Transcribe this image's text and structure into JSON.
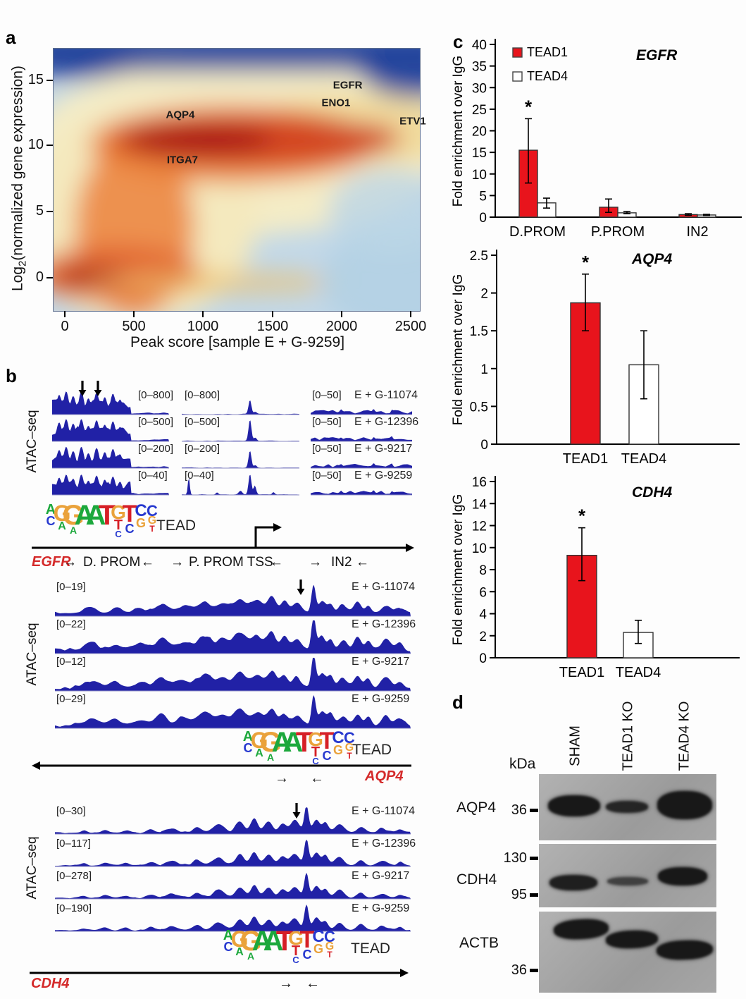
{
  "panel_labels": {
    "a": "a",
    "b": "b",
    "c": "c",
    "d": "d"
  },
  "panel_a": {
    "ylabel_prefix": "Log",
    "ylabel_sub": "2",
    "ylabel_rest": "(normalized gene expression)",
    "xlabel": "Peak score [sample  E + G-9259]",
    "y_ticks": [
      "15",
      "10",
      "5",
      "0"
    ],
    "x_ticks": [
      "0",
      "500",
      "1000",
      "1500",
      "2000",
      "2500"
    ],
    "gene_labels": [
      "AQP4",
      "EGFR",
      "ENO1",
      "ETV1",
      "ITGA7"
    ]
  },
  "panel_b": {
    "atac_seq_label": "ATAC–seq",
    "tead_label": "TEAD",
    "motif_positions": [
      [
        "A",
        "C"
      ],
      [
        "G",
        "A"
      ],
      [
        "G",
        "A"
      ],
      [
        "A"
      ],
      [
        "A"
      ],
      [
        "T"
      ],
      [
        "G",
        "T",
        "C"
      ],
      [
        "T",
        "C"
      ],
      [
        "C",
        "G"
      ],
      [
        "C",
        "G",
        "T"
      ]
    ],
    "sections": [
      {
        "gene": "EGFR",
        "samples": [
          "E + G-11074",
          "E + G-12396",
          "E + G-9217",
          "E + G-9259"
        ],
        "col1_ranges": [
          "[0–800]",
          "[0–500]",
          "[0–200]",
          "[0–40]"
        ],
        "col2_ranges": [
          "[0–800]",
          "[0–500]",
          "[0–200]",
          "[0–40]"
        ],
        "col3_ranges": [
          "[0–50]",
          "[0–50]",
          "[0–50]",
          "[0–50]"
        ],
        "diagram_gene": "EGFR",
        "diagram_items": [
          "→",
          "D. PROM",
          "←",
          "→",
          "P. PROM TSS",
          "←",
          "→",
          "IN2",
          "←"
        ]
      },
      {
        "gene": "AQP4",
        "samples": [
          "E + G-11074",
          "E + G-12396",
          "E + G-9217",
          "E + G-9259"
        ],
        "ranges": [
          "[0–19]",
          "[0–22]",
          "[0–12]",
          "[0–29]"
        ],
        "diagram_gene": "AQP4"
      },
      {
        "gene": "CDH4",
        "samples": [
          "E + G-11074",
          "E + G-12396",
          "E + G-9217",
          "E + G-9259"
        ],
        "ranges": [
          "[0–30]",
          "[0–117]",
          "[0–278]",
          "[0–190]"
        ],
        "diagram_gene": "CDH4"
      }
    ]
  },
  "panel_c": {
    "legend": [
      {
        "label": "TEAD1",
        "color": "#e8141c"
      },
      {
        "label": "TEAD4",
        "color": "#ffffff"
      }
    ]
  },
  "panel_d": {
    "kda_label": "kDa",
    "lanes": [
      "SHAM",
      "TEAD1 KO",
      "TEAD4 KO"
    ],
    "blots": [
      {
        "protein": "AQP4",
        "markers": [
          "36"
        ]
      },
      {
        "protein": "CDH4",
        "markers": [
          "130",
          "95"
        ]
      },
      {
        "protein": "ACTB",
        "markers": [
          "36"
        ]
      }
    ]
  },
  "chart_data": [
    {
      "id": "panel_a_density",
      "type": "heatmap",
      "title": "",
      "xlabel": "Peak score [sample E + G-9259]",
      "ylabel": "Log2(normalized gene expression)",
      "xlim": [
        -120,
        2600
      ],
      "ylim": [
        -2.4,
        17.3
      ],
      "x_ticks": [
        0,
        500,
        1000,
        1500,
        2000,
        2500
      ],
      "y_ticks": [
        0,
        5,
        10,
        15
      ],
      "grid": false,
      "annotations": [
        {
          "label": "AQP4",
          "x": 835,
          "y": 12.3
        },
        {
          "label": "EGFR",
          "x": 2045,
          "y": 14.5
        },
        {
          "label": "ENO1",
          "x": 1960,
          "y": 13.2
        },
        {
          "label": "ETV1",
          "x": 2515,
          "y": 11.8
        },
        {
          "label": "ITGA7",
          "x": 850,
          "y": 8.9
        }
      ],
      "description": "Smoothed 2D density of Log2 normalized gene expression vs ATAC-seq peak score; high density (dark red) band near expression ~9-11 spanning peak scores ~400-2300, dense red blob near expression 0 at low peak scores, low density (blue) along top edge and bottom-right."
    },
    {
      "id": "chip_EGFR",
      "type": "bar",
      "title": "EGFR",
      "ylabel": "Fold enrichment over IgG",
      "ylim": [
        0,
        40
      ],
      "ytick_step": 5,
      "categories": [
        "D.PROM",
        "P.PROM",
        "IN2"
      ],
      "series": [
        {
          "name": "TEAD1",
          "color": "#e8141c",
          "values": [
            15.5,
            2.3,
            0.6
          ],
          "err_lo": [
            7.9,
            1.1,
            0.45
          ],
          "err_hi": [
            22.8,
            4.2,
            0.8
          ],
          "sig": [
            "*",
            "",
            ""
          ]
        },
        {
          "name": "TEAD4",
          "color": "#ffffff",
          "values": [
            3.3,
            1.0,
            0.5
          ],
          "err_lo": [
            2.1,
            0.8,
            0.4
          ],
          "err_hi": [
            4.4,
            1.3,
            0.65
          ],
          "sig": [
            "",
            "",
            ""
          ]
        }
      ]
    },
    {
      "id": "chip_AQP4",
      "type": "bar",
      "title": "AQP4",
      "ylabel": "Fold enrichment over IgG",
      "ylim": [
        0,
        2.5
      ],
      "ytick_step": 0.5,
      "categories": [
        "TEAD1",
        "TEAD4"
      ],
      "bars": [
        {
          "label": "TEAD1",
          "color": "#e8141c",
          "value": 1.87,
          "err_lo": 1.5,
          "err_hi": 2.25,
          "sig": "*"
        },
        {
          "label": "TEAD4",
          "color": "#ffffff",
          "value": 1.05,
          "err_lo": 0.6,
          "err_hi": 1.5,
          "sig": ""
        }
      ]
    },
    {
      "id": "chip_CDH4",
      "type": "bar",
      "title": "CDH4",
      "ylabel": "Fold enrichment over IgG",
      "ylim": [
        0,
        16
      ],
      "ytick_step": 2,
      "categories": [
        "TEAD1",
        "TEAD4"
      ],
      "bars": [
        {
          "label": "TEAD1",
          "color": "#e8141c",
          "value": 9.3,
          "err_lo": 7.0,
          "err_hi": 11.8,
          "sig": "*"
        },
        {
          "label": "TEAD4",
          "color": "#ffffff",
          "value": 2.3,
          "err_lo": 1.3,
          "err_hi": 3.4,
          "sig": ""
        }
      ]
    }
  ]
}
